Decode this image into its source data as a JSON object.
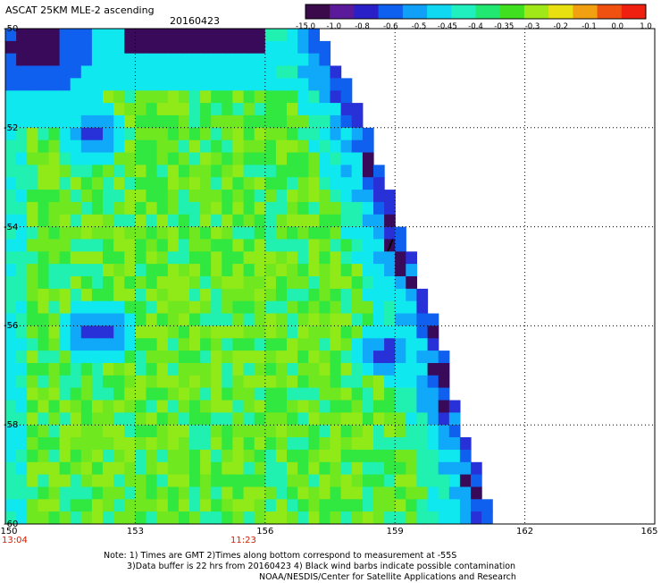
{
  "header": {
    "title": "ASCAT 25KM MLE-2 ascending",
    "date": "20160423"
  },
  "colorbar": {
    "labels": [
      "-15.0",
      "-1.0",
      "-0.8",
      "-0.6",
      "-0.5",
      "-0.45",
      "-0.4",
      "-0.35",
      "-0.3",
      "-0.2",
      "-0.1",
      "0.0",
      "1.0"
    ],
    "colors": [
      "#3a0a4a",
      "#5a1a9a",
      "#2a20c8",
      "#1060f0",
      "#10a0f8",
      "#10d8f0",
      "#20f0c0",
      "#20e870",
      "#40e020",
      "#a0e818",
      "#e8e010",
      "#f0a010",
      "#f05010",
      "#f02010"
    ]
  },
  "axes": {
    "x_ticks": [
      "150",
      "153",
      "156",
      "159",
      "162",
      "165"
    ],
    "y_ticks": [
      "-50",
      "-52",
      "-54",
      "-56",
      "-58",
      "-60"
    ],
    "lon_range": [
      150,
      165
    ],
    "lat_range": [
      -60,
      -50
    ]
  },
  "times": {
    "left": "13:04",
    "middle": "11:23"
  },
  "notes": {
    "line1": "Note: 1) Times are GMT 2)Times along bottom correspond to measurement at -55S",
    "line2": "3)Data buffer is 22 hrs from 20160423 4) Black wind barbs indicate possible contamination",
    "line3": "NOAA/NESDIS/Center for Satellite Applications and Research"
  },
  "swath_edge": [
    [
      157.1,
      -50.0
    ],
    [
      157.7,
      -51.0
    ],
    [
      158.2,
      -52.0
    ],
    [
      158.6,
      -53.0
    ],
    [
      159.0,
      -54.0
    ],
    [
      159.4,
      -55.0
    ],
    [
      159.8,
      -56.0
    ],
    [
      160.1,
      -57.0
    ],
    [
      160.4,
      -58.0
    ],
    [
      160.8,
      -59.0
    ],
    [
      161.2,
      -60.0
    ]
  ],
  "features": [
    {
      "type": "low-value-patch",
      "lon": 150.6,
      "lat": -50.2,
      "radius": 1.3,
      "level": "dark"
    },
    {
      "type": "low-value-patch",
      "lon": 151.9,
      "lat": -52.0,
      "radius": 0.5,
      "level": "blue"
    },
    {
      "type": "low-value-patch",
      "lon": 152.0,
      "lat": -56.0,
      "radius": 0.6,
      "level": "blue"
    },
    {
      "type": "low-value-patch",
      "lon": 158.7,
      "lat": -56.4,
      "radius": 0.5,
      "level": "blue"
    }
  ]
}
